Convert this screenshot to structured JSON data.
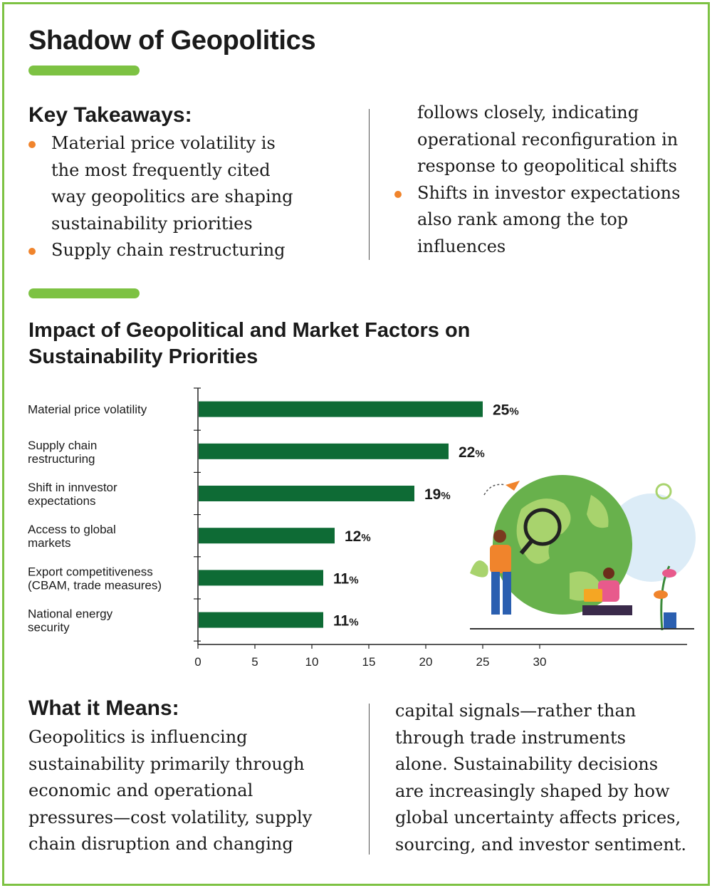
{
  "header": {
    "title": "Shadow of Geopolitics"
  },
  "takeaways": {
    "heading": "Key Takeaways:",
    "col1": [
      {
        "text": "Material price volatility is",
        "bullet": true
      },
      {
        "text": "the most frequently cited",
        "bullet": false
      },
      {
        "text": "way geopolitics are shaping",
        "bullet": false
      },
      {
        "text": "sustainability priorities",
        "bullet": false
      },
      {
        "text": "Supply chain restructuring",
        "bullet": true
      }
    ],
    "col2": [
      {
        "text": "follows closely, indicating",
        "bullet": false
      },
      {
        "text": "operational reconfiguration in",
        "bullet": false
      },
      {
        "text": "response to geopolitical shifts",
        "bullet": false
      },
      {
        "text": "Shifts in investor expectations",
        "bullet": true
      },
      {
        "text": "also rank among the top",
        "bullet": false
      },
      {
        "text": "influences",
        "bullet": false
      }
    ]
  },
  "chart_data": {
    "type": "bar",
    "orientation": "horizontal",
    "title": "Impact of Geopolitical and Market Factors on Sustainability Priorities",
    "categories": [
      [
        "Material price volatility"
      ],
      [
        "Supply chain",
        "restructuring"
      ],
      [
        "Shift in innvestor",
        "expectations"
      ],
      [
        "Access to global",
        "markets"
      ],
      [
        "Export competitiveness",
        "(CBAM, trade measures)"
      ],
      [
        "National energy",
        "security"
      ]
    ],
    "values": [
      25,
      22,
      19,
      12,
      11,
      11
    ],
    "value_suffix": "%",
    "xlim": [
      0,
      30
    ],
    "xticks": [
      0,
      5,
      10,
      15,
      20,
      25,
      30
    ],
    "bar_color": "#0e6b35",
    "grid": false
  },
  "meaning": {
    "heading": "What it Means:",
    "col1": [
      "Geopolitics is influencing",
      "sustainability primarily through",
      "economic and operational",
      "pressures—cost volatility, supply",
      "chain disruption and changing"
    ],
    "col2": [
      "capital signals—rather than",
      "through trade instruments",
      "alone. Sustainability decisions",
      "are increasingly shaped by how",
      "global uncertainty affects prices,",
      "sourcing, and investor sentiment."
    ]
  },
  "colors": {
    "accent": "#7dc243",
    "bullet": "#f0842c",
    "bar": "#0e6b35"
  },
  "illustration": {
    "icon": "globe-with-people-illustration"
  }
}
